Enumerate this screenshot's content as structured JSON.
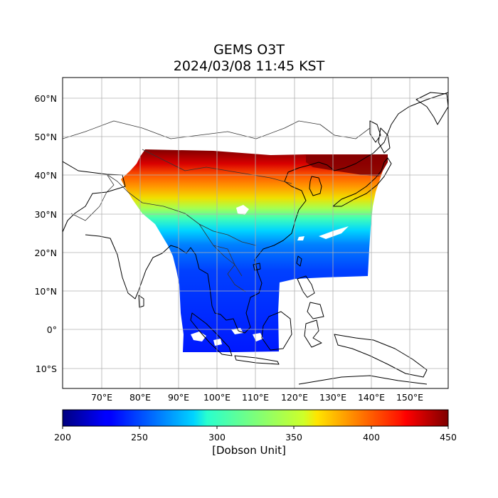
{
  "title_line1": "GEMS O3T",
  "title_line2": "2024/03/08 11:45 KST",
  "map": {
    "lon_range": [
      60,
      160
    ],
    "lat_range": [
      -15,
      65
    ],
    "lon_ticks": [
      "70°E",
      "80°E",
      "90°E",
      "100°E",
      "110°E",
      "120°E",
      "130°E",
      "140°E",
      "150°E"
    ],
    "lat_ticks": [
      "60°N",
      "50°N",
      "40°N",
      "30°N",
      "20°N",
      "10°N",
      "0°",
      "10°S"
    ],
    "gridlines": true
  },
  "colorbar": {
    "min": 200,
    "max": 450,
    "ticks": [
      "200",
      "250",
      "300",
      "350",
      "400",
      "450"
    ],
    "label": "[Dobson Unit]",
    "colormap": "jet"
  }
}
